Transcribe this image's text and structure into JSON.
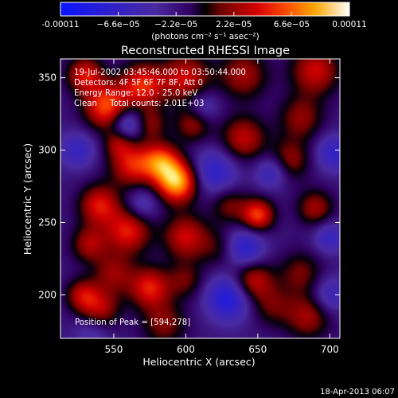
{
  "chart_data": {
    "type": "heatmap",
    "title": "Reconstructed RHESSI Image",
    "xlabel": "Heliocentric X (arcsec)",
    "ylabel": "Heliocentric Y (arcsec)",
    "xlim": [
      513,
      707
    ],
    "ylim": [
      170,
      363
    ],
    "x_ticks": [
      550,
      600,
      650,
      700
    ],
    "y_ticks": [
      200,
      250,
      300,
      350
    ],
    "colorbar": {
      "range": [
        -0.00011,
        0.00011
      ],
      "tick_values": [
        -0.00011,
        -6.6e-05,
        -2.2e-05,
        2.2e-05,
        6.6e-05,
        0.00011
      ],
      "tick_labels": [
        "-0.00011",
        "−6.6e−05",
        "−2.2e−05",
        "2.2e−05",
        "6.6e−05",
        "0.00011"
      ],
      "unit_label": "(photons cm⁻² s⁻¹ asec⁻²)"
    },
    "annotations": [
      "19-Jul-2002 03:45:46.000 to 03:50:44.000",
      "Detectors: 4F 5F 6F 7F 8F, Att 0",
      "Energy Range: 12.0 - 25.0 keV",
      "Clean     Total counts: 2.01E+03"
    ],
    "peak_label": "Position of Peak = [594,278]",
    "peak": {
      "x": 594,
      "y": 278,
      "value": 0.00011
    },
    "blobs": [
      {
        "x": 594,
        "y": 278,
        "a": 1.0,
        "s": 10
      },
      {
        "x": 583,
        "y": 292,
        "a": 0.7,
        "s": 9
      },
      {
        "x": 563,
        "y": 290,
        "a": 0.62,
        "s": 11
      },
      {
        "x": 545,
        "y": 330,
        "a": 0.75,
        "s": 11
      },
      {
        "x": 570,
        "y": 345,
        "a": 0.65,
        "s": 11
      },
      {
        "x": 530,
        "y": 352,
        "a": 0.58,
        "s": 9
      },
      {
        "x": 600,
        "y": 350,
        "a": 0.55,
        "s": 12
      },
      {
        "x": 640,
        "y": 352,
        "a": 0.45,
        "s": 12
      },
      {
        "x": 690,
        "y": 355,
        "a": 0.55,
        "s": 12
      },
      {
        "x": 605,
        "y": 318,
        "a": 0.42,
        "s": 9
      },
      {
        "x": 640,
        "y": 308,
        "a": 0.52,
        "s": 11
      },
      {
        "x": 680,
        "y": 322,
        "a": 0.4,
        "s": 11
      },
      {
        "x": 672,
        "y": 293,
        "a": 0.42,
        "s": 10
      },
      {
        "x": 650,
        "y": 255,
        "a": 0.72,
        "s": 8
      },
      {
        "x": 630,
        "y": 262,
        "a": 0.35,
        "s": 9
      },
      {
        "x": 690,
        "y": 260,
        "a": 0.45,
        "s": 9
      },
      {
        "x": 540,
        "y": 262,
        "a": 0.6,
        "s": 10
      },
      {
        "x": 560,
        "y": 244,
        "a": 0.62,
        "s": 11
      },
      {
        "x": 533,
        "y": 235,
        "a": 0.45,
        "s": 9
      },
      {
        "x": 600,
        "y": 240,
        "a": 0.55,
        "s": 11
      },
      {
        "x": 625,
        "y": 232,
        "a": 0.3,
        "s": 10
      },
      {
        "x": 550,
        "y": 215,
        "a": 0.4,
        "s": 10
      },
      {
        "x": 575,
        "y": 205,
        "a": 0.62,
        "s": 10
      },
      {
        "x": 600,
        "y": 210,
        "a": 0.32,
        "s": 9
      },
      {
        "x": 646,
        "y": 210,
        "a": 0.58,
        "s": 10
      },
      {
        "x": 680,
        "y": 215,
        "a": 0.35,
        "s": 11
      },
      {
        "x": 540,
        "y": 190,
        "a": 0.5,
        "s": 10
      },
      {
        "x": 528,
        "y": 200,
        "a": 0.45,
        "s": 8
      },
      {
        "x": 585,
        "y": 180,
        "a": 0.38,
        "s": 11
      },
      {
        "x": 685,
        "y": 185,
        "a": 0.45,
        "s": 11
      },
      {
        "x": 660,
        "y": 192,
        "a": 0.3,
        "s": 10
      },
      {
        "x": 575,
        "y": 318,
        "a": 0.38,
        "s": 8
      },
      {
        "x": 553,
        "y": 305,
        "a": 0.35,
        "s": 7
      },
      {
        "x": 620,
        "y": 285,
        "a": -0.45,
        "s": 11
      },
      {
        "x": 640,
        "y": 232,
        "a": -0.55,
        "s": 10
      },
      {
        "x": 630,
        "y": 198,
        "a": -0.6,
        "s": 11
      },
      {
        "x": 560,
        "y": 318,
        "a": -0.5,
        "s": 8
      },
      {
        "x": 703,
        "y": 298,
        "a": -0.4,
        "s": 9
      },
      {
        "x": 660,
        "y": 285,
        "a": -0.4,
        "s": 8
      },
      {
        "x": 570,
        "y": 263,
        "a": -0.3,
        "s": 8
      },
      {
        "x": 525,
        "y": 300,
        "a": -0.35,
        "s": 9
      },
      {
        "x": 700,
        "y": 240,
        "a": -0.35,
        "s": 8
      },
      {
        "x": 612,
        "y": 330,
        "a": -0.3,
        "s": 8
      },
      {
        "x": 535,
        "y": 175,
        "a": -0.25,
        "s": 9
      },
      {
        "x": 700,
        "y": 200,
        "a": -0.35,
        "s": 9
      }
    ]
  },
  "footer": {
    "timestamp": "18-Apr-2013 06:07"
  }
}
